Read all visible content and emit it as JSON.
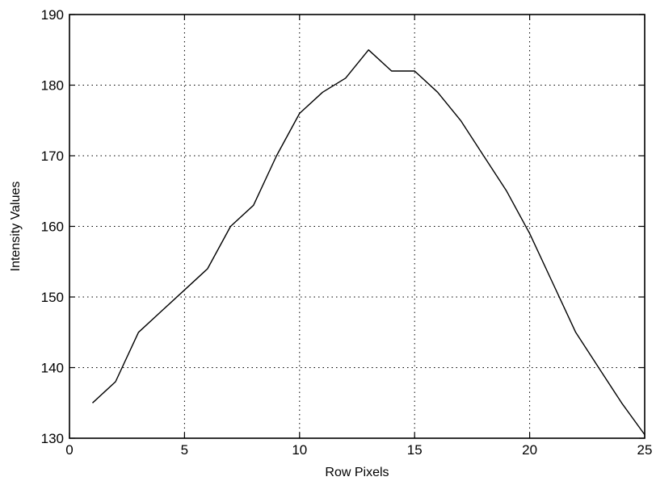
{
  "chart_data": {
    "type": "line",
    "title": "",
    "xlabel": "Row Pixels",
    "ylabel": "Intensity Values",
    "xlim": [
      0,
      25
    ],
    "ylim": [
      130,
      190
    ],
    "x_ticks": [
      0,
      5,
      10,
      15,
      20,
      25
    ],
    "y_ticks": [
      130,
      140,
      150,
      160,
      170,
      180,
      190
    ],
    "grid": true,
    "legend": "none",
    "line_color": "#000000",
    "series": [
      {
        "x": [
          1,
          2,
          3,
          4,
          5,
          6,
          7,
          8,
          9,
          10,
          11,
          12,
          13,
          14,
          15,
          16,
          17,
          18,
          19,
          20,
          21,
          22,
          23,
          24,
          25
        ],
        "values": [
          135,
          138,
          145,
          148,
          151,
          154,
          160,
          163,
          170,
          176,
          179,
          181,
          185,
          182,
          182,
          179,
          175,
          170,
          165,
          159,
          152,
          145,
          140,
          135,
          130.5
        ]
      }
    ]
  }
}
